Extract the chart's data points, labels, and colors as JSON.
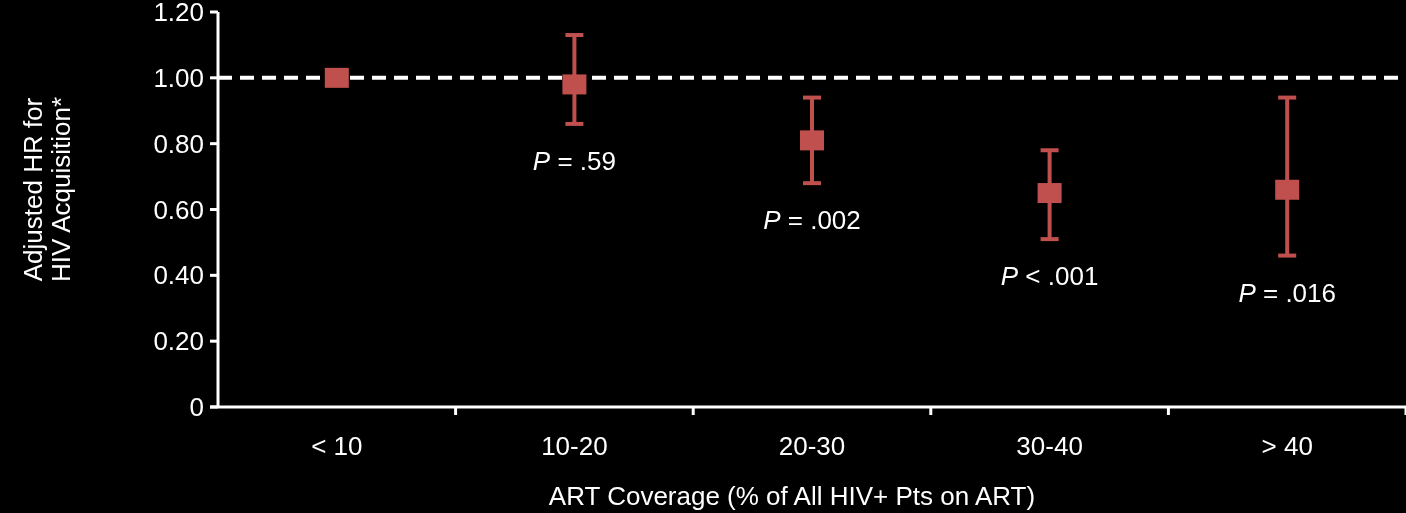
{
  "chart_data": {
    "type": "scatter",
    "xlabel": "ART Coverage (% of All HIV+ Pts on ART)",
    "ylabel": "Adjusted HR for\nHIV Acquisition*",
    "categories": [
      "< 10",
      "10-20",
      "20-30",
      "30-40",
      "> 40"
    ],
    "series": [
      {
        "color": "#c0504d",
        "values": [
          1.0,
          0.98,
          0.81,
          0.65,
          0.66
        ],
        "errors": [
          null,
          [
            0.86,
            1.13
          ],
          [
            0.68,
            0.94
          ],
          [
            0.51,
            0.78
          ],
          [
            0.46,
            0.94
          ]
        ]
      }
    ],
    "marker": "square",
    "ylim": [
      0,
      1.2
    ],
    "yticks": [
      0,
      {
        "value": 0.2,
        "label": "0.20"
      },
      {
        "value": 0.4,
        "label": "0.40"
      },
      {
        "value": 0.6,
        "label": "0.60"
      },
      {
        "value": 0.8,
        "label": "0.80"
      },
      {
        "value": 1,
        "label": "1.00"
      },
      {
        "value": 1.2,
        "label": "1.20"
      }
    ],
    "ref_lines": [
      {
        "axis": "y",
        "value": 1,
        "color": "#ffffff",
        "line_style": "dashed"
      }
    ],
    "annotations": [
      "P = .59",
      "P = .002",
      "P < .001",
      "P = .016"
    ]
  }
}
